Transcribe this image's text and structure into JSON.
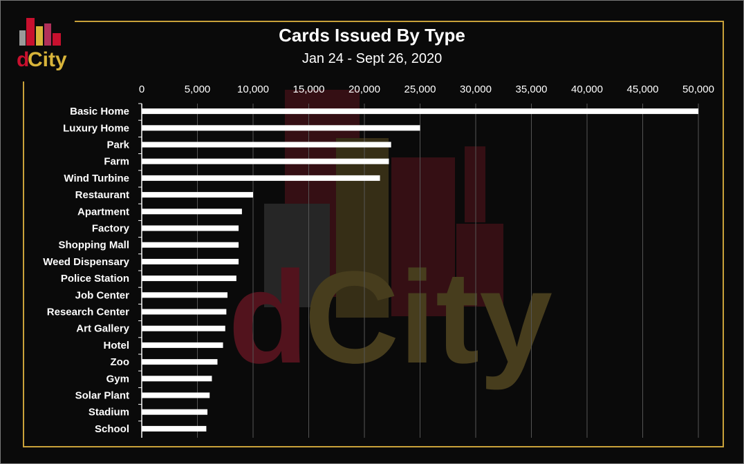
{
  "colors": {
    "background": "#0a0a0a",
    "frame": "#c9a23a",
    "bar": "#ffffff",
    "gridline": "#555555",
    "text": "#ffffff"
  },
  "logo": {
    "name": "dcity-logo-icon",
    "text_d": "d",
    "text_city": "City"
  },
  "watermark": {
    "name": "dcity-watermark-icon",
    "text_d": "d",
    "text_city": "City"
  },
  "chart_data": {
    "type": "bar",
    "orientation": "horizontal",
    "title": "Cards Issued By Type",
    "subtitle": "Jan 24 - Sept 26, 2020",
    "xlabel": "",
    "ylabel": "",
    "xlim": [
      0,
      50000
    ],
    "x_axis_position": "top",
    "grid": true,
    "legend": "none",
    "ticks": [
      "0",
      "5,000",
      "10,000",
      "15,000",
      "20,000",
      "25,000",
      "30,000",
      "35,000",
      "40,000",
      "45,000",
      "50,000"
    ],
    "tick_values": [
      0,
      5000,
      10000,
      15000,
      20000,
      25000,
      30000,
      35000,
      40000,
      45000,
      50000
    ],
    "categories": [
      "Basic Home",
      "Luxury Home",
      "Park",
      "Farm",
      "Wind Turbine",
      "Restaurant",
      "Apartment",
      "Factory",
      "Shopping Mall",
      "Weed Dispensary",
      "Police Station",
      "Job Center",
      "Research Center",
      "Art Gallery",
      "Hotel",
      "Zoo",
      "Gym",
      "Solar Plant",
      "Stadium",
      "School"
    ],
    "values": [
      50000,
      25000,
      22400,
      22200,
      21400,
      10000,
      9000,
      8700,
      8700,
      8700,
      8500,
      7700,
      7600,
      7500,
      7300,
      6800,
      6300,
      6100,
      5900,
      5800
    ]
  }
}
